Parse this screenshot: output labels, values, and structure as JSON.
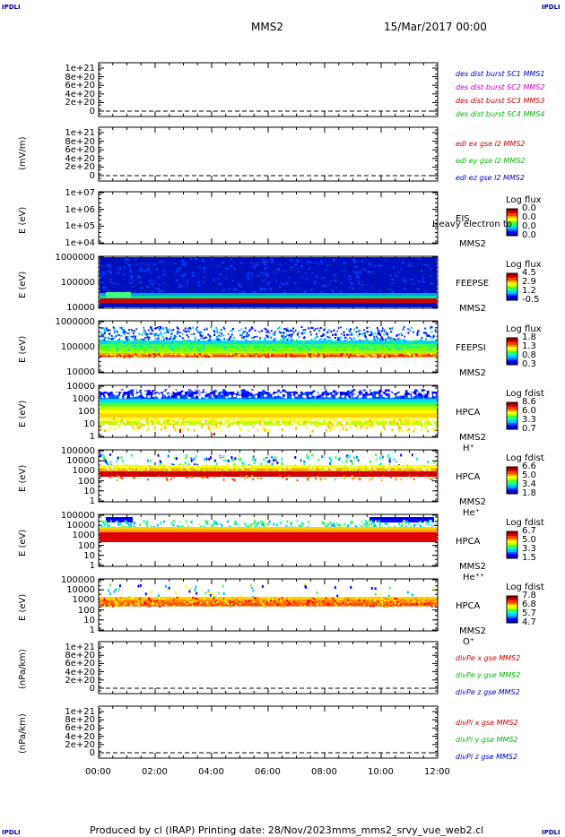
{
  "header": {
    "spacecraft": "MMS2",
    "datetime": "15/Mar/2017 00:00",
    "corner_left": "IPDLI",
    "corner_right": "IPDLI"
  },
  "footer": {
    "produced": "Produced by cl (IRAP)",
    "printing": "Printing date: 28/Nov/2023",
    "script": "mms_mms2_srvy_vue_web2.cl",
    "corner_left": "IPDLI",
    "corner_right": "IPDLI"
  },
  "colors": {
    "blue": "#0000cc",
    "magenta": "#cc00cc",
    "red": "#cc0000",
    "green": "#00bb00"
  },
  "chart_data": [
    {
      "type": "line",
      "panel": "p1",
      "yticks": [
        "1e+21",
        "8e+20",
        "6e+20",
        "4e+20",
        "2e+20",
        "0"
      ],
      "ylabel": "",
      "legend": [
        {
          "text": "des dist burst SC1 MMS1",
          "color": "#0000cc"
        },
        {
          "text": "des dist burst SC2 MMS2",
          "color": "#cc00cc"
        },
        {
          "text": "des dist burst SC3 MMS3",
          "color": "#cc0000"
        },
        {
          "text": "des dist burst SC4 MMS4",
          "color": "#00bb00"
        }
      ]
    },
    {
      "type": "line",
      "panel": "p2",
      "yticks": [
        "1e+21",
        "8e+20",
        "6e+20",
        "4e+20",
        "2e+20",
        "0"
      ],
      "ylabel": "(mV/m)",
      "legend": [
        {
          "text": "edi ex gse l2 MMS2",
          "color": "#cc0000"
        },
        {
          "text": "edi ey gse l2 MMS2",
          "color": "#00bb00"
        },
        {
          "text": "edi ez gse l2 MMS2",
          "color": "#0000cc"
        }
      ]
    },
    {
      "type": "heatmap",
      "panel": "p3",
      "yticks": [
        "1e+07",
        "1e+06",
        "1e+05",
        "1e+04"
      ],
      "ylabel": "E (eV)",
      "instrument": "EIS",
      "sc": "MMS2",
      "species": "",
      "overlay": "Heavy electron to",
      "cbar_title": "Log flux",
      "cbar_ticks": [
        "0.0",
        "0.0",
        "0.0",
        "0.0"
      ]
    },
    {
      "type": "heatmap",
      "panel": "p4",
      "yticks": [
        "1000000",
        "100000",
        "10000"
      ],
      "ylabel": "E (eV)",
      "instrument": "FEEPSE",
      "sc": "MMS2",
      "species": "",
      "cbar_title": "Log flux",
      "cbar_ticks": [
        "4.5",
        "2.9",
        "1.2",
        "-0.5"
      ]
    },
    {
      "type": "heatmap",
      "panel": "p5",
      "yticks": [
        "1000000",
        "100000",
        "10000"
      ],
      "ylabel": "E (eV)",
      "instrument": "FEEPSI",
      "sc": "MMS2",
      "species": "",
      "cbar_title": "Log flux",
      "cbar_ticks": [
        "1.8",
        "1.3",
        "0.8",
        "0.3"
      ]
    },
    {
      "type": "heatmap",
      "panel": "p6",
      "yticks": [
        "10000",
        "1000",
        "100",
        "10",
        "1"
      ],
      "ylabel": "E (eV)",
      "instrument": "HPCA",
      "sc": "MMS2",
      "species": "H⁺",
      "cbar_title": "Log fdist",
      "cbar_ticks": [
        "8.6",
        "6.0",
        "3.3",
        "0.7"
      ]
    },
    {
      "type": "heatmap",
      "panel": "p7",
      "yticks": [
        "100000",
        "10000",
        "1000",
        "100",
        "10",
        "1"
      ],
      "ylabel": "E (eV)",
      "instrument": "HPCA",
      "sc": "MMS2",
      "species": "He⁺",
      "cbar_title": "Log fdist",
      "cbar_ticks": [
        "6.6",
        "5.0",
        "3.4",
        "1.8"
      ]
    },
    {
      "type": "heatmap",
      "panel": "p8",
      "yticks": [
        "100000",
        "10000",
        "1000",
        "100",
        "10",
        "1"
      ],
      "ylabel": "E (eV)",
      "instrument": "HPCA",
      "sc": "MMS2",
      "species": "He⁺⁺",
      "cbar_title": "Log fdist",
      "cbar_ticks": [
        "6.7",
        "5.0",
        "3.3",
        "1.5"
      ]
    },
    {
      "type": "heatmap",
      "panel": "p9",
      "yticks": [
        "100000",
        "10000",
        "1000",
        "100",
        "10",
        "1"
      ],
      "ylabel": "E (eV)",
      "instrument": "HPCA",
      "sc": "MMS2",
      "species": "O⁺",
      "cbar_title": "Log fdist",
      "cbar_ticks": [
        "7.8",
        "6.8",
        "5.7",
        "4.7"
      ]
    },
    {
      "type": "line",
      "panel": "p10",
      "yticks": [
        "1e+21",
        "8e+20",
        "6e+20",
        "4e+20",
        "2e+20",
        "0"
      ],
      "ylabel": "(nPa/km)",
      "legend": [
        {
          "text": "divPe x gse MMS2",
          "color": "#cc0000"
        },
        {
          "text": "divPe y gse MMS2",
          "color": "#00bb00"
        },
        {
          "text": "divPe z gse MMS2",
          "color": "#0000cc"
        }
      ]
    },
    {
      "type": "line",
      "panel": "p11",
      "yticks": [
        "1e+21",
        "8e+20",
        "6e+20",
        "4e+20",
        "2e+20",
        "0"
      ],
      "ylabel": "(nPa/km)",
      "legend": [
        {
          "text": "divPi x gse MMS2",
          "color": "#cc0000"
        },
        {
          "text": "divPi y gse MMS2",
          "color": "#00bb00"
        },
        {
          "text": "divPi z gse MMS2",
          "color": "#0000cc"
        }
      ]
    }
  ],
  "xaxis": {
    "ticks": [
      "00:00",
      "02:00",
      "04:00",
      "06:00",
      "08:00",
      "10:00",
      "12:00"
    ]
  }
}
